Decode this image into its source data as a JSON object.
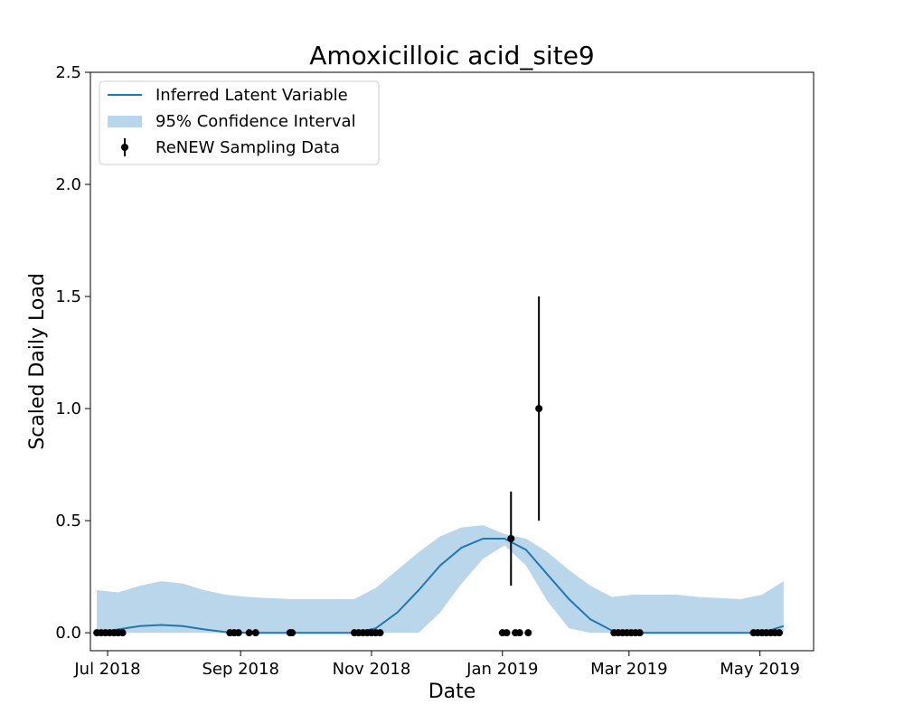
{
  "chart_data": {
    "type": "line",
    "title": "Amoxicilloic acid_site9",
    "xlabel": "Date",
    "ylabel": "Scaled Daily Load",
    "xlim": [
      "2018-06-23",
      "2019-05-26"
    ],
    "ylim": [
      -0.08,
      2.5
    ],
    "x_ticks": [
      {
        "date": "2018-07-01",
        "label": "Jul 2018"
      },
      {
        "date": "2018-09-01",
        "label": "Sep 2018"
      },
      {
        "date": "2018-11-01",
        "label": "Nov 2018"
      },
      {
        "date": "2019-01-01",
        "label": "Jan 2019"
      },
      {
        "date": "2019-03-01",
        "label": "Mar 2019"
      },
      {
        "date": "2019-05-01",
        "label": "May 2019"
      }
    ],
    "y_ticks": [
      {
        "value": 0.0,
        "label": "0.0"
      },
      {
        "value": 0.5,
        "label": "0.5"
      },
      {
        "value": 1.0,
        "label": "1.0"
      },
      {
        "value": 1.5,
        "label": "1.5"
      },
      {
        "value": 2.0,
        "label": "2.0"
      },
      {
        "value": 2.5,
        "label": "2.5"
      }
    ],
    "grid": false,
    "legend_position": "top-left",
    "legend": [
      {
        "label": "Inferred Latent Variable",
        "kind": "line"
      },
      {
        "label": "95% Confidence Interval",
        "kind": "band"
      },
      {
        "label": "ReNEW Sampling Data",
        "kind": "errorbar"
      }
    ],
    "colors": {
      "line": "#1f77b4",
      "band": "#bad6ea",
      "points": "#000000"
    },
    "latent_variable": {
      "x": [
        "2018-06-26",
        "2018-07-06",
        "2018-07-16",
        "2018-07-26",
        "2018-08-05",
        "2018-08-15",
        "2018-08-25",
        "2018-09-04",
        "2018-09-14",
        "2018-09-24",
        "2018-10-04",
        "2018-10-14",
        "2018-10-24",
        "2018-11-03",
        "2018-11-13",
        "2018-11-23",
        "2018-12-03",
        "2018-12-13",
        "2018-12-23",
        "2019-01-02",
        "2019-01-12",
        "2019-01-22",
        "2019-02-01",
        "2019-02-11",
        "2019-02-21",
        "2019-03-03",
        "2019-03-13",
        "2019-03-23",
        "2019-04-02",
        "2019-04-12",
        "2019-04-22",
        "2019-05-02",
        "2019-05-12"
      ],
      "y": [
        0.0,
        0.015,
        0.03,
        0.035,
        0.03,
        0.015,
        0.003,
        0.0,
        0.0,
        0.0,
        0.0,
        0.0,
        0.0,
        0.02,
        0.09,
        0.19,
        0.3,
        0.38,
        0.42,
        0.42,
        0.37,
        0.26,
        0.15,
        0.06,
        0.01,
        0.0,
        0.0,
        0.0,
        0.0,
        0.0,
        0.0,
        0.0,
        0.03
      ]
    },
    "confidence_interval": {
      "x": [
        "2018-06-26",
        "2018-07-06",
        "2018-07-16",
        "2018-07-26",
        "2018-08-05",
        "2018-08-15",
        "2018-08-25",
        "2018-09-04",
        "2018-09-14",
        "2018-09-24",
        "2018-10-04",
        "2018-10-14",
        "2018-10-24",
        "2018-11-03",
        "2018-11-13",
        "2018-11-23",
        "2018-12-03",
        "2018-12-13",
        "2018-12-23",
        "2019-01-02",
        "2019-01-12",
        "2019-01-22",
        "2019-02-01",
        "2019-02-11",
        "2019-02-21",
        "2019-03-03",
        "2019-03-13",
        "2019-03-23",
        "2019-04-02",
        "2019-04-12",
        "2019-04-22",
        "2019-05-02",
        "2019-05-12"
      ],
      "lower": [
        0.0,
        0.0,
        0.0,
        0.0,
        0.0,
        0.0,
        0.0,
        0.0,
        0.0,
        0.0,
        0.0,
        0.0,
        0.0,
        0.0,
        0.0,
        0.0,
        0.09,
        0.22,
        0.33,
        0.39,
        0.3,
        0.14,
        0.02,
        0.0,
        0.0,
        0.0,
        0.0,
        0.0,
        0.0,
        0.0,
        0.0,
        0.0,
        0.0
      ],
      "upper": [
        0.19,
        0.18,
        0.21,
        0.23,
        0.22,
        0.19,
        0.17,
        0.16,
        0.155,
        0.15,
        0.15,
        0.15,
        0.15,
        0.2,
        0.28,
        0.36,
        0.43,
        0.47,
        0.48,
        0.44,
        0.42,
        0.36,
        0.28,
        0.21,
        0.16,
        0.17,
        0.17,
        0.17,
        0.16,
        0.155,
        0.15,
        0.17,
        0.23
      ]
    },
    "sampling_data": [
      {
        "x": "2018-06-26",
        "y": 0.0
      },
      {
        "x": "2018-06-28",
        "y": 0.0
      },
      {
        "x": "2018-06-30",
        "y": 0.0
      },
      {
        "x": "2018-07-02",
        "y": 0.0
      },
      {
        "x": "2018-07-04",
        "y": 0.0
      },
      {
        "x": "2018-07-06",
        "y": 0.0
      },
      {
        "x": "2018-07-08",
        "y": 0.0
      },
      {
        "x": "2018-08-27",
        "y": 0.0
      },
      {
        "x": "2018-08-29",
        "y": 0.0
      },
      {
        "x": "2018-08-31",
        "y": 0.0
      },
      {
        "x": "2018-09-05",
        "y": 0.0
      },
      {
        "x": "2018-09-08",
        "y": 0.0
      },
      {
        "x": "2018-09-24",
        "y": 0.0
      },
      {
        "x": "2018-09-25",
        "y": 0.0
      },
      {
        "x": "2018-10-24",
        "y": 0.0
      },
      {
        "x": "2018-10-26",
        "y": 0.0
      },
      {
        "x": "2018-10-28",
        "y": 0.0
      },
      {
        "x": "2018-10-30",
        "y": 0.0
      },
      {
        "x": "2018-11-01",
        "y": 0.0
      },
      {
        "x": "2018-11-03",
        "y": 0.0
      },
      {
        "x": "2018-11-05",
        "y": 0.0
      },
      {
        "x": "2019-01-01",
        "y": 0.0
      },
      {
        "x": "2019-01-03",
        "y": 0.0
      },
      {
        "x": "2019-01-05",
        "y": 0.42,
        "err_low": 0.21,
        "err_high": 0.63
      },
      {
        "x": "2019-01-07",
        "y": 0.0
      },
      {
        "x": "2019-01-09",
        "y": 0.0
      },
      {
        "x": "2019-01-13",
        "y": 0.0
      },
      {
        "x": "2019-01-18",
        "y": 1.0,
        "err_low": 0.5,
        "err_high": 1.5
      },
      {
        "x": "2019-02-22",
        "y": 0.0
      },
      {
        "x": "2019-02-24",
        "y": 0.0
      },
      {
        "x": "2019-02-26",
        "y": 0.0
      },
      {
        "x": "2019-02-28",
        "y": 0.0
      },
      {
        "x": "2019-03-02",
        "y": 0.0
      },
      {
        "x": "2019-03-04",
        "y": 0.0
      },
      {
        "x": "2019-03-06",
        "y": 0.0
      },
      {
        "x": "2019-04-28",
        "y": 0.0
      },
      {
        "x": "2019-04-30",
        "y": 0.0
      },
      {
        "x": "2019-05-02",
        "y": 0.0
      },
      {
        "x": "2019-05-04",
        "y": 0.0
      },
      {
        "x": "2019-05-06",
        "y": 0.0
      },
      {
        "x": "2019-05-08",
        "y": 0.0
      },
      {
        "x": "2019-05-10",
        "y": 0.0
      }
    ]
  }
}
